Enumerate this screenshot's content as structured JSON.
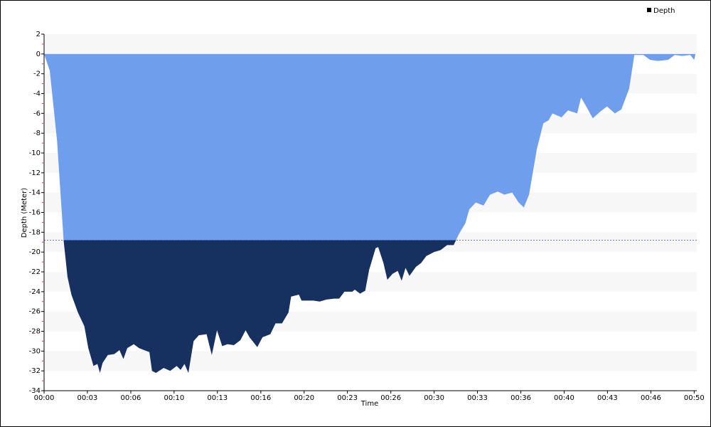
{
  "chart_data": {
    "type": "area",
    "x_label": "Time",
    "y_label": "Depth (Meter)",
    "legend": "top-right",
    "reference_line": -18.8,
    "series": [
      {
        "name": "Depth",
        "color": "#6f9fec",
        "deep_color": "#16305f",
        "legend_color": "#000000",
        "x": [
          0,
          0.44,
          1.0,
          1.5,
          1.8,
          2.1,
          2.6,
          3.1,
          3.4,
          3.8,
          4.1,
          4.3,
          4.5,
          4.9,
          5.4,
          5.8,
          6.1,
          6.4,
          6.9,
          7.3,
          7.7,
          8.1,
          8.3,
          8.6,
          9.2,
          9.7,
          10.2,
          10.5,
          10.8,
          11.1,
          11.5,
          11.9,
          12.5,
          12.9,
          13.3,
          13.7,
          14.1,
          14.6,
          15.1,
          15.5,
          15.8,
          16.4,
          16.8,
          17.4,
          17.8,
          18.3,
          18.8,
          19.0,
          19.6,
          19.8,
          20.7,
          21.2,
          21.7,
          22.3,
          22.7,
          23.1,
          23.7,
          23.9,
          24.3,
          24.7,
          25.0,
          25.5,
          25.7,
          26.1,
          26.4,
          26.8,
          27.2,
          27.5,
          27.8,
          28.1,
          28.6,
          29.0,
          29.4,
          30.0,
          30.5,
          31.0,
          31.5,
          31.9,
          32.4,
          32.7,
          33.2,
          33.8,
          34.3,
          34.9,
          35.4,
          36.0,
          36.5,
          36.9,
          37.3,
          37.9,
          38.4,
          38.8,
          39.1,
          39.8,
          40.3,
          41.0,
          41.3,
          41.7,
          42.2,
          42.8,
          43.3,
          43.9,
          44.4,
          45.0,
          45.4,
          46.1,
          46.6,
          47.2,
          48.0,
          48.5,
          49.1,
          49.7,
          50.0,
          50.1
        ],
        "values": [
          0,
          -1.7,
          -8.8,
          -18.8,
          -22.5,
          -24.3,
          -26.1,
          -27.5,
          -29.7,
          -31.5,
          -31.3,
          -32.2,
          -31.2,
          -30.4,
          -30.3,
          -29.9,
          -30.8,
          -29.7,
          -29.3,
          -29.7,
          -29.9,
          -30.1,
          -32.0,
          -32.2,
          -31.7,
          -32.0,
          -31.5,
          -31.9,
          -31.3,
          -32.2,
          -29.0,
          -28.4,
          -28.3,
          -30.4,
          -27.9,
          -29.5,
          -29.3,
          -29.4,
          -28.9,
          -27.9,
          -28.6,
          -29.6,
          -28.6,
          -28.3,
          -27.2,
          -27.2,
          -26.1,
          -24.5,
          -24.3,
          -24.9,
          -24.9,
          -25.0,
          -24.8,
          -24.7,
          -24.7,
          -24.0,
          -24.0,
          -23.8,
          -24.2,
          -23.9,
          -21.8,
          -19.6,
          -19.5,
          -21.1,
          -22.8,
          -22.2,
          -21.9,
          -22.9,
          -21.6,
          -22.4,
          -21.5,
          -21.1,
          -20.4,
          -20.0,
          -19.8,
          -19.3,
          -19.3,
          -18.2,
          -17.1,
          -15.7,
          -15.0,
          -15.3,
          -14.2,
          -13.9,
          -14.2,
          -14.0,
          -15.0,
          -15.5,
          -14.2,
          -9.6,
          -7.0,
          -6.7,
          -6.0,
          -6.4,
          -5.7,
          -6.0,
          -4.4,
          -5.3,
          -6.5,
          -5.8,
          -5.3,
          -6.0,
          -5.6,
          -3.5,
          -0.1,
          -0.1,
          -0.6,
          -0.7,
          -0.6,
          -0.1,
          -0.2,
          -0.1,
          -0.6,
          0
        ]
      }
    ],
    "xlim": [
      0,
      50.2
    ],
    "xticks": [
      {
        "value": 0,
        "label": "00:00"
      },
      {
        "value": 3.33,
        "label": "00:03"
      },
      {
        "value": 6.67,
        "label": "00:06"
      },
      {
        "value": 10,
        "label": "00:10"
      },
      {
        "value": 13.33,
        "label": "00:13"
      },
      {
        "value": 16.67,
        "label": "00:16"
      },
      {
        "value": 20,
        "label": "00:20"
      },
      {
        "value": 23.33,
        "label": "00:23"
      },
      {
        "value": 26.67,
        "label": "00:26"
      },
      {
        "value": 30,
        "label": "00:30"
      },
      {
        "value": 33.33,
        "label": "00:33"
      },
      {
        "value": 36.67,
        "label": "00:36"
      },
      {
        "value": 40,
        "label": "00:40"
      },
      {
        "value": 43.33,
        "label": "00:43"
      },
      {
        "value": 46.67,
        "label": "00:46"
      },
      {
        "value": 50,
        "label": "00:50"
      }
    ],
    "ylim": [
      -34,
      2
    ],
    "yticks": [
      2,
      0,
      -2,
      -4,
      -6,
      -8,
      -10,
      -12,
      -14,
      -16,
      -18,
      -20,
      -22,
      -24,
      -26,
      -28,
      -30,
      -32,
      -34
    ],
    "bands": true
  }
}
